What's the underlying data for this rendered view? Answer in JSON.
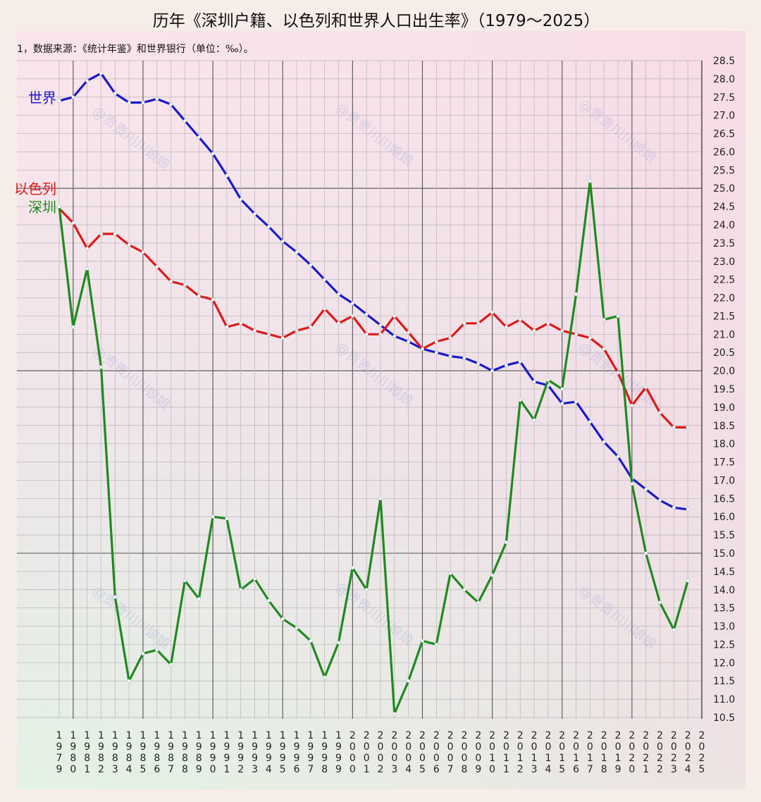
{
  "chart_data": {
    "type": "line",
    "title": "历年《深圳户籍、以色列和世界人口出生率》（1979～2025）",
    "subtitle": "1，数据来源：《统计年鉴》和世界银行（单位：‰）。",
    "x": [
      1979,
      1980,
      1981,
      1982,
      1983,
      1984,
      1985,
      1986,
      1987,
      1988,
      1989,
      1990,
      1991,
      1992,
      1993,
      1994,
      1995,
      1996,
      1997,
      1998,
      1999,
      2000,
      2001,
      2002,
      2003,
      2004,
      2005,
      2006,
      2007,
      2008,
      2009,
      2010,
      2011,
      2012,
      2013,
      2014,
      2015,
      2016,
      2017,
      2018,
      2019,
      2020,
      2021,
      2022,
      2023,
      2024,
      2025
    ],
    "x_tick_labels": [
      "1979",
      "1980",
      "1981",
      "1982",
      "1983",
      "1984",
      "1985",
      "1986",
      "1987",
      "1988",
      "1989",
      "1990",
      "1991",
      "1992",
      "1993",
      "1994",
      "1995",
      "1996",
      "1997",
      "1998",
      "1999",
      "2000",
      "2001",
      "2002",
      "2003",
      "2004",
      "2005",
      "2006",
      "2007",
      "2008",
      "2009",
      "2010",
      "2011",
      "2012",
      "2013",
      "2014",
      "2015",
      "2016",
      "2017",
      "2018",
      "2019",
      "2020",
      "2021",
      "2022",
      "2023",
      "2024",
      "2025"
    ],
    "ylim": [
      10.5,
      28.5
    ],
    "y_ticks": [
      "10.5",
      "11.0",
      "11.5",
      "12.0",
      "12.5",
      "13.0",
      "13.5",
      "14.0",
      "14.5",
      "15.0",
      "15.5",
      "16.0",
      "16.5",
      "17.0",
      "17.5",
      "18.0",
      "18.5",
      "19.0",
      "19.5",
      "20.0",
      "20.5",
      "21.0",
      "21.5",
      "22.0",
      "22.5",
      "23.0",
      "23.5",
      "24.0",
      "24.5",
      "25.0",
      "25.5",
      "26.0",
      "26.5",
      "27.0",
      "27.5",
      "28.0",
      "28.5"
    ],
    "grid": true,
    "series": [
      {
        "name": "世界",
        "color": "#1a1acc",
        "values": [
          27.4,
          27.5,
          27.95,
          28.15,
          27.6,
          27.35,
          27.35,
          27.45,
          27.3,
          26.85,
          26.4,
          25.95,
          25.35,
          24.7,
          24.3,
          23.95,
          23.55,
          23.25,
          22.9,
          22.5,
          22.1,
          21.85,
          21.55,
          21.25,
          20.95,
          20.8,
          20.6,
          20.5,
          20.4,
          20.35,
          20.2,
          20.0,
          20.15,
          20.25,
          19.7,
          19.6,
          19.1,
          19.15,
          18.6,
          18.05,
          17.65,
          17.05,
          16.75,
          16.45,
          16.25,
          16.2,
          null
        ]
      },
      {
        "name": "以色列",
        "color": "#e01818",
        "values": [
          24.45,
          24.05,
          23.35,
          23.75,
          23.75,
          23.45,
          23.25,
          22.85,
          22.45,
          22.35,
          22.05,
          21.95,
          21.2,
          21.3,
          21.1,
          21.0,
          20.9,
          21.1,
          21.2,
          21.7,
          21.3,
          21.5,
          21.0,
          21.0,
          21.5,
          21.05,
          20.6,
          20.8,
          20.9,
          21.3,
          21.3,
          21.6,
          21.2,
          21.4,
          21.1,
          21.3,
          21.1,
          21.0,
          20.9,
          20.6,
          19.95,
          19.05,
          19.55,
          18.85,
          18.45,
          18.45,
          null
        ]
      },
      {
        "name": "深圳",
        "color": "#1f8a1f",
        "values": [
          24.5,
          21.2,
          22.8,
          20.1,
          13.8,
          11.5,
          12.25,
          12.35,
          11.95,
          14.25,
          13.75,
          16.0,
          15.95,
          14.0,
          14.3,
          13.7,
          13.2,
          12.95,
          12.6,
          11.6,
          12.55,
          14.6,
          14.0,
          16.5,
          10.6,
          11.5,
          12.6,
          12.5,
          14.45,
          14.0,
          13.65,
          14.4,
          15.3,
          19.2,
          18.65,
          19.75,
          19.5,
          22.1,
          25.2,
          21.4,
          21.5,
          16.9,
          15.0,
          13.65,
          12.9,
          14.25,
          null
        ]
      }
    ],
    "series_labels": [
      {
        "name": "世界",
        "at_value": 27.5
      },
      {
        "name": "以色列",
        "at_value": 25.0
      },
      {
        "name": "深圳",
        "at_value": 24.5
      }
    ],
    "background": {
      "top": "#fbe2ea",
      "bottom_left": "#e2f4e4",
      "right": "#f4d5e1"
    },
    "watermark": "@贵贵川川娘娘"
  }
}
